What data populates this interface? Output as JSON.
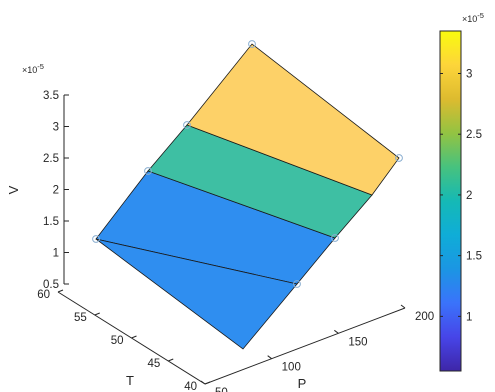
{
  "chart_data": {
    "type": "3d-surface",
    "xlabel": "P",
    "ylabel": "T",
    "zlabel": "V",
    "x_ticks": [
      "50",
      "100",
      "150",
      "200"
    ],
    "y_ticks": [
      "40",
      "45",
      "50",
      "55",
      "60"
    ],
    "z_ticks": [
      "0.5",
      "1",
      "1.5",
      "2",
      "2.5",
      "3",
      "3.5"
    ],
    "z_exponent_base": "×10",
    "z_exponent_power": "-5",
    "xlim": [
      50,
      200
    ],
    "ylim": [
      40,
      60
    ],
    "zlim": [
      0.5,
      3.5
    ],
    "z_scale_factor": 1e-05,
    "grid": false,
    "colormap": "parula",
    "surface_bands": [
      {
        "color": "#2f8ef0",
        "label": "lower"
      },
      {
        "color": "#3ebfa3",
        "label": "middle"
      },
      {
        "color": "#fdd168",
        "label": "upper"
      }
    ],
    "marker_points": [
      {
        "id": "p1",
        "P": 200,
        "T": 40,
        "V": 1.2
      },
      {
        "id": "p2",
        "P": 200,
        "T": 45,
        "V": 1.85
      },
      {
        "id": "p3",
        "P": 200,
        "T": 50,
        "V": 2.25
      },
      {
        "id": "p4",
        "P": 200,
        "T": 60,
        "V": 3.3
      },
      {
        "id": "p5",
        "P": 50,
        "T": 40,
        "V": 2.6
      },
      {
        "id": "p6",
        "P": 50,
        "T": 45,
        "V": 2.9
      },
      {
        "id": "p7",
        "P": 50,
        "T": 50,
        "V": 3.15
      }
    ],
    "colorbar": {
      "ticks": [
        "1",
        "1.5",
        "2",
        "2.5",
        "3"
      ],
      "exponent_base": "×10",
      "exponent_power": "-5",
      "range": [
        0.55,
        3.35
      ]
    }
  }
}
